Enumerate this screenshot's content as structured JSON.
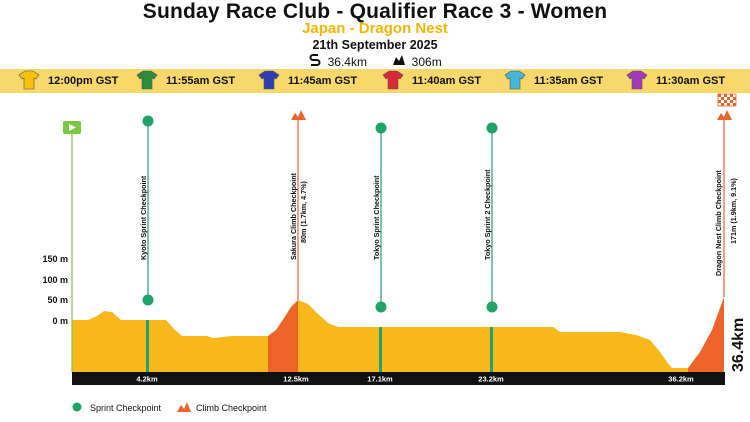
{
  "header": {
    "title": "Sunday Race Club - Qualifier Race 3 - Women",
    "subtitle": "Japan - Dragon Nest",
    "date": "21th September 2025",
    "distance": "36.4km",
    "elevation": "306m"
  },
  "groups": [
    {
      "time": "12:00pm GST",
      "color": "#f4c20d",
      "icon": "jersey-icon"
    },
    {
      "time": "11:55am GST",
      "color": "#2e8b3c",
      "icon": "jersey-icon"
    },
    {
      "time": "11:45am GST",
      "color": "#2f3db0",
      "icon": "jersey-icon"
    },
    {
      "time": "11:40am GST",
      "color": "#d62a3a",
      "icon": "jersey-icon"
    },
    {
      "time": "11:35am GST",
      "color": "#45b7d8",
      "icon": "jersey-icon"
    },
    {
      "time": "11:30am GST",
      "color": "#a23ab8",
      "icon": "jersey-icon"
    }
  ],
  "profile": {
    "y_labels": [
      "150 m",
      "100 m",
      "50 m",
      "0 m"
    ],
    "total_distance": "36.4km",
    "distance_ticks": [
      "4.2km",
      "12.5km",
      "17.1km",
      "23.2km",
      "36.2km"
    ],
    "checkpoints": [
      {
        "type": "sprint",
        "name": "Kyoto Sprint Checkpoint",
        "detail": ""
      },
      {
        "type": "climb",
        "name": "Sakura Climb Checkpoint",
        "detail": "80m (1.7km, 4.7%)"
      },
      {
        "type": "sprint",
        "name": "Tokyo Sprint Checkpoint",
        "detail": ""
      },
      {
        "type": "sprint",
        "name": "Tokyo Sprint 2 Checkpoint",
        "detail": ""
      },
      {
        "type": "climb",
        "name": "Dragon Nest Climb Checkpoint",
        "detail": "171m (1.9km, 9.1%)"
      }
    ],
    "colors": {
      "terrain": "#f8b81c",
      "climb": "#ee6328",
      "sprint": "#1fa36b",
      "start": "#7ac943",
      "axis": "#111111"
    }
  },
  "legend": {
    "sprint": "Sprint Checkpoint",
    "climb": "Climb Checkpoint"
  }
}
